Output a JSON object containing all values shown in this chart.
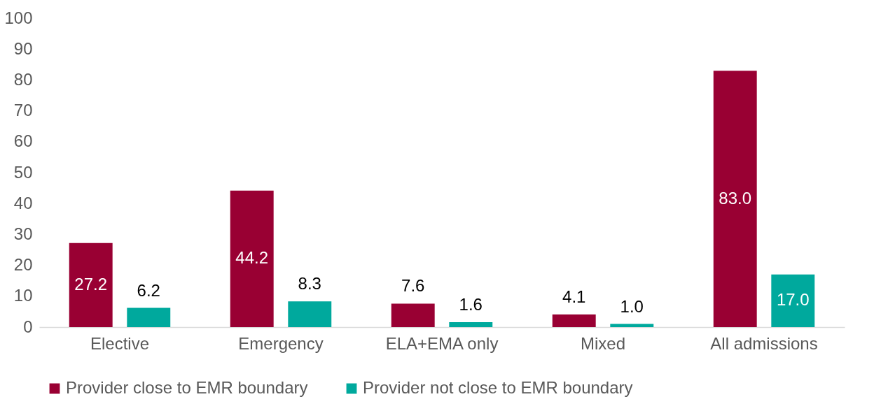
{
  "chart_data": {
    "type": "bar",
    "categories": [
      "Elective",
      "Emergency",
      "ELA+EMA only",
      "Mixed",
      "All admissions"
    ],
    "series": [
      {
        "name": "Provider close to EMR boundary",
        "color": "#990033",
        "values": [
          27.2,
          44.2,
          7.6,
          4.1,
          83.0
        ],
        "value_labels": [
          "27.2",
          "44.2",
          "7.6",
          "4.1",
          "83.0"
        ]
      },
      {
        "name": "Provider not close to EMR boundary",
        "color": "#00a99d",
        "values": [
          6.2,
          8.3,
          1.6,
          1.0,
          17.0
        ],
        "value_labels": [
          "6.2",
          "8.3",
          "1.6",
          "1.0",
          "17.0"
        ]
      }
    ],
    "ylim": [
      0,
      100
    ],
    "yticks": [
      0,
      10,
      20,
      30,
      40,
      50,
      60,
      70,
      80,
      90,
      100
    ],
    "grid": false,
    "legend": "bottom"
  }
}
